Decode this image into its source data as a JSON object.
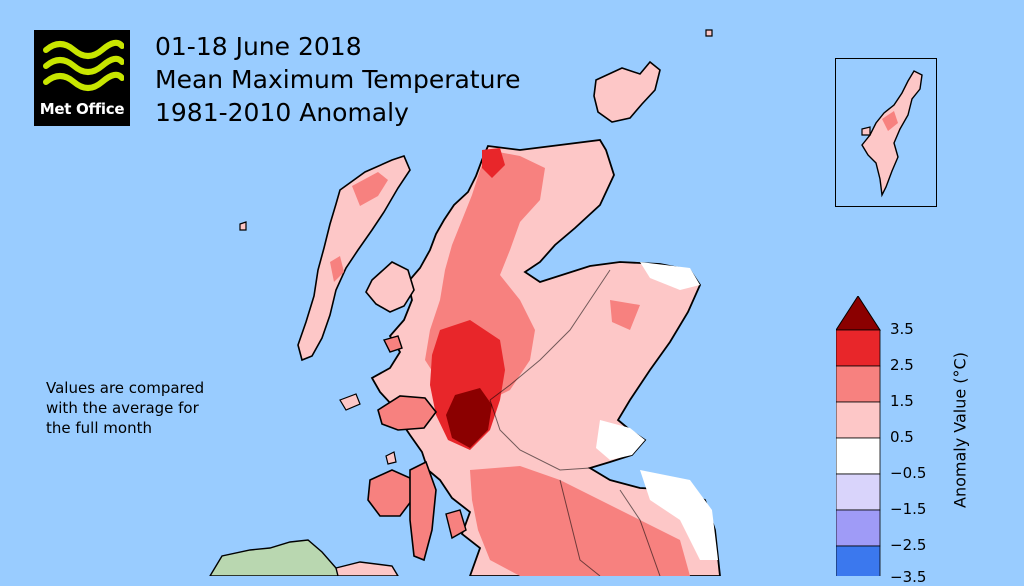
{
  "logo": {
    "text": "Met Office",
    "icon": "met-office-wave-logo",
    "brand_color": "#c8e600"
  },
  "title": {
    "line1": "01-18 June 2018",
    "line2": "Mean Maximum Temperature",
    "line3": "1981-2010 Anomaly"
  },
  "note": {
    "line1": "Values are compared",
    "line2": "with the average for",
    "line3": "the full month"
  },
  "legend": {
    "title": "Anomaly Value (°C)",
    "ticks": [
      "3.5",
      "2.5",
      "1.5",
      "0.5",
      "−0.5",
      "−1.5",
      "−2.5",
      "−3.5"
    ],
    "bins": [
      {
        "range": "> 3.5",
        "color": "#8b0000"
      },
      {
        "range": "2.5 to 3.5",
        "color": "#e8262a"
      },
      {
        "range": "1.5 to 2.5",
        "color": "#f7817f"
      },
      {
        "range": "0.5 to 1.5",
        "color": "#fdc7c7"
      },
      {
        "range": "-0.5 to 0.5",
        "color": "#ffffff"
      },
      {
        "range": "-1.5 to -0.5",
        "color": "#d9d4fb"
      },
      {
        "range": "-2.5 to -1.5",
        "color": "#9f9bf7"
      },
      {
        "range": "-3.5 to -2.5",
        "color": "#3b78ee"
      }
    ]
  },
  "colors": {
    "sea": "#99ccff",
    "ireland": "#b9d7b0",
    "coastline": "#000000"
  },
  "inset": {
    "region": "Shetland"
  }
}
